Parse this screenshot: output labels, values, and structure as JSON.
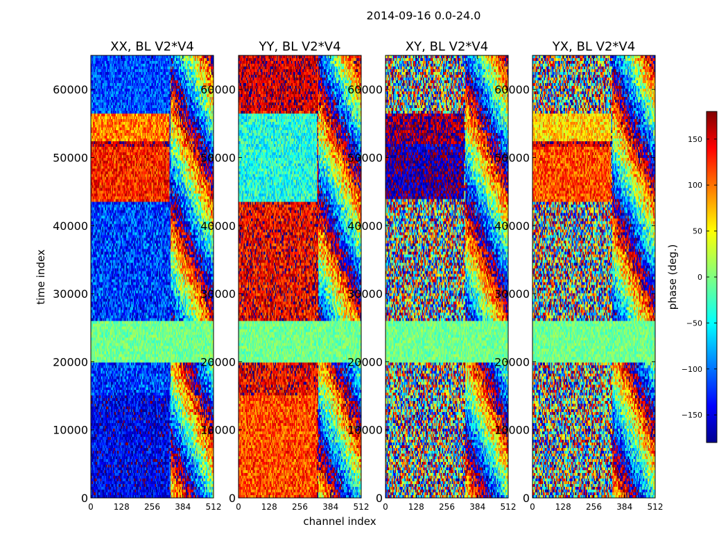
{
  "chart_data": {
    "type": "heatmap",
    "suptitle": "2014-09-16 0.0-24.0",
    "xlabel": "channel index",
    "ylabel": "time index",
    "xlim": [
      0,
      512
    ],
    "ylim": [
      0,
      65000
    ],
    "x_ticks": [
      0,
      128,
      256,
      384,
      512
    ],
    "x_tick_labels": [
      "0",
      "128",
      "256",
      "384",
      "512"
    ],
    "y_ticks": [
      0,
      10000,
      20000,
      30000,
      40000,
      50000,
      60000
    ],
    "y_tick_labels": [
      "0",
      "10000",
      "20000",
      "30000",
      "40000",
      "50000",
      "60000"
    ],
    "colorbar": {
      "label": "phase (deg.)",
      "range": [
        -180,
        180
      ],
      "ticks": [
        -150,
        -100,
        -50,
        0,
        50,
        100,
        150
      ],
      "tick_labels": [
        "−150",
        "−100",
        "−50",
        "0",
        "50",
        "100",
        "150"
      ],
      "colormap": "jet"
    },
    "panels": [
      {
        "title": "XX, BL V2*V4",
        "base_phase": -115,
        "noise": 55,
        "bands": [
          {
            "t0": 43500,
            "t1": 51500,
            "c1": 330,
            "phase": 125
          },
          {
            "t0": 51500,
            "t1": 52500,
            "c1": 330,
            "phase": 155
          },
          {
            "t0": 52500,
            "t1": 56500,
            "c1": 330,
            "phase": 90
          },
          {
            "t0": 57000,
            "t1": 65000,
            "c1": 330,
            "phase": -110
          },
          {
            "t0": 20000,
            "t1": 26000,
            "c1": 512,
            "phase": -5
          },
          {
            "t0": 0,
            "t1": 15000,
            "c1": 330,
            "phase": -140
          }
        ]
      },
      {
        "title": "YY, BL V2*V4",
        "base_phase": 140,
        "noise": 55,
        "bands": [
          {
            "t0": 43500,
            "t1": 56500,
            "c1": 330,
            "phase": -35
          },
          {
            "t0": 57000,
            "t1": 65000,
            "c1": 330,
            "phase": 150
          },
          {
            "t0": 20000,
            "t1": 26000,
            "c1": 512,
            "phase": -5
          },
          {
            "t0": 0,
            "t1": 15000,
            "c1": 330,
            "phase": 110
          }
        ]
      },
      {
        "title": "XY, BL V2*V4",
        "base_phase": 0,
        "noise": 180,
        "bands": [
          {
            "t0": 44000,
            "t1": 51000,
            "c1": 330,
            "phase": -165
          },
          {
            "t0": 51000,
            "t1": 52000,
            "c1": 330,
            "phase": -150
          },
          {
            "t0": 52000,
            "t1": 56500,
            "c1": 330,
            "phase": 170
          },
          {
            "t0": 20000,
            "t1": 26000,
            "c1": 512,
            "phase": -5
          }
        ]
      },
      {
        "title": "YX, BL V2*V4",
        "base_phase": 0,
        "noise": 180,
        "bands": [
          {
            "t0": 43500,
            "t1": 51500,
            "c1": 330,
            "phase": 110
          },
          {
            "t0": 51500,
            "t1": 52500,
            "c1": 330,
            "phase": 150
          },
          {
            "t0": 52500,
            "t1": 56500,
            "c1": 330,
            "phase": 60
          },
          {
            "t0": 20000,
            "t1": 26000,
            "c1": 512,
            "phase": -5
          }
        ]
      }
    ]
  }
}
